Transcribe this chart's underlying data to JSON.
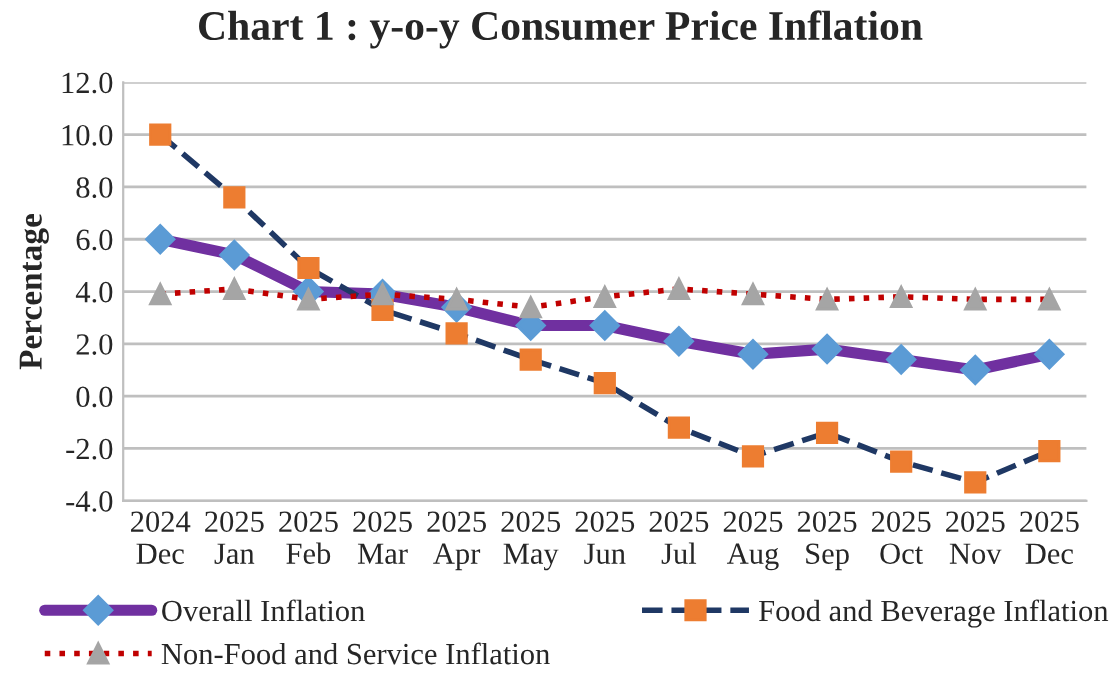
{
  "chart_data": {
    "type": "line",
    "title": "Chart 1 : y-o-y Consumer Price Inflation",
    "ylabel": "Percentage",
    "categories": [
      "2024\nDec",
      "2025\nJan",
      "2025\nFeb",
      "2025\nMar",
      "2025\nApr",
      "2025\nMay",
      "2025\nJun",
      "2025\nJul",
      "2025\nAug",
      "2025\nSep",
      "2025\nOct",
      "2025\nNov",
      "2025\nDec"
    ],
    "series": [
      {
        "name": "Overall Inflation",
        "color": "#7030a0",
        "marker": "diamond",
        "line_style": "solid",
        "values": [
          6.0,
          5.4,
          4.0,
          3.9,
          3.4,
          2.7,
          2.7,
          2.1,
          1.6,
          1.8,
          1.4,
          1.0,
          1.6
        ]
      },
      {
        "name": "Food and Beverage Inflation",
        "color": "#1f3864",
        "marker": "square",
        "line_style": "dashed",
        "values": [
          10.0,
          7.6,
          4.9,
          3.3,
          2.4,
          1.4,
          0.5,
          -1.2,
          -2.3,
          -1.4,
          -2.5,
          -3.3,
          -2.1
        ]
      },
      {
        "name": "Non-Food and Service Inflation",
        "color": "#c00000",
        "marker": "triangle",
        "line_style": "dotted",
        "values": [
          3.9,
          4.1,
          3.7,
          3.9,
          3.7,
          3.4,
          3.8,
          4.1,
          3.9,
          3.7,
          3.8,
          3.7,
          3.7
        ]
      }
    ],
    "ylim": [
      -4,
      12
    ],
    "yticks": [
      {
        "value": -4,
        "label": "-4.0"
      },
      {
        "value": -2,
        "label": "-2.0"
      },
      {
        "value": 0,
        "label": "0.0"
      },
      {
        "value": 2,
        "label": "2.0"
      },
      {
        "value": 4,
        "label": "4.0"
      },
      {
        "value": 6,
        "label": "6.0"
      },
      {
        "value": 8,
        "label": "8.0"
      },
      {
        "value": 10,
        "label": "10.0"
      },
      {
        "value": 12,
        "label": "12.0"
      }
    ],
    "grid": "y",
    "legend": "bottom"
  }
}
